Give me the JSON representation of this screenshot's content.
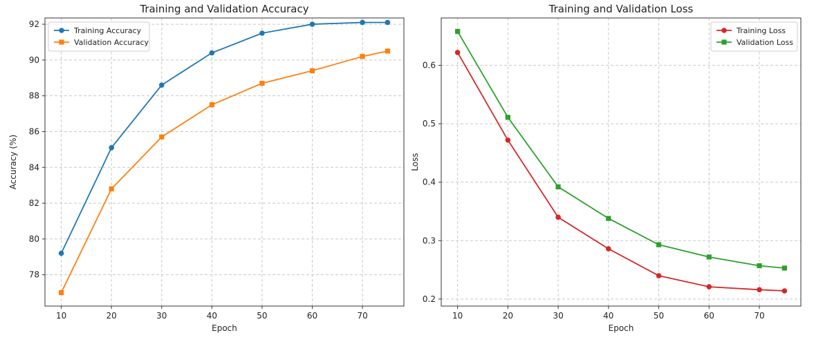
{
  "chart_data": [
    {
      "type": "line",
      "title": "Training and Validation Accuracy",
      "xlabel": "Epoch",
      "ylabel": "Accuracy (%)",
      "x": [
        10,
        20,
        30,
        40,
        50,
        60,
        70,
        75
      ],
      "xticks": [
        10,
        20,
        30,
        40,
        50,
        60,
        70
      ],
      "yticks": [
        78,
        80,
        82,
        84,
        86,
        88,
        90,
        92
      ],
      "xlim": [
        6.75,
        78.25
      ],
      "ylim": [
        76.25,
        92.35
      ],
      "grid": true,
      "legend": "top-left",
      "series": [
        {
          "name": "Training Accuracy",
          "values": [
            79.2,
            85.1,
            88.6,
            90.4,
            91.5,
            92.0,
            92.1,
            92.1
          ],
          "color": "#1f77b4",
          "marker": "circle"
        },
        {
          "name": "Validation Accuracy",
          "values": [
            77.0,
            82.8,
            85.7,
            87.5,
            88.7,
            89.4,
            90.2,
            90.5
          ],
          "color": "#ff7f0e",
          "marker": "square"
        }
      ]
    },
    {
      "type": "line",
      "title": "Training and Validation Loss",
      "xlabel": "Epoch",
      "ylabel": "Loss",
      "x": [
        10,
        20,
        30,
        40,
        50,
        60,
        70,
        75
      ],
      "xticks": [
        10,
        20,
        30,
        40,
        50,
        60,
        70
      ],
      "yticks": [
        0.2,
        0.3,
        0.4,
        0.5,
        0.6
      ],
      "xlim": [
        6.75,
        78.25
      ],
      "ylim": [
        0.188,
        0.681
      ],
      "grid": true,
      "legend": "top-right",
      "series": [
        {
          "name": "Training Loss",
          "values": [
            0.622,
            0.472,
            0.34,
            0.286,
            0.24,
            0.221,
            0.216,
            0.214
          ],
          "color": "#d62728",
          "marker": "circle"
        },
        {
          "name": "Validation Loss",
          "values": [
            0.658,
            0.511,
            0.392,
            0.338,
            0.293,
            0.272,
            0.257,
            0.253
          ],
          "color": "#2ca02c",
          "marker": "square"
        }
      ]
    }
  ]
}
